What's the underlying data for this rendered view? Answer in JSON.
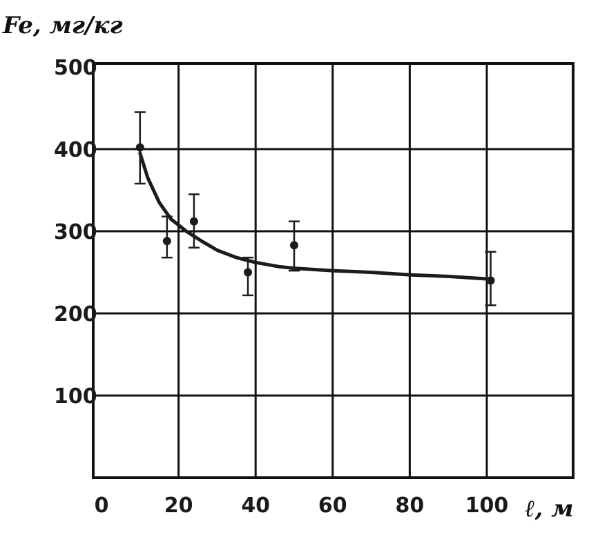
{
  "chart_data": {
    "type": "scatter",
    "title": "",
    "ylabel": "Fe, мг/кг",
    "xlabel": "ℓ, м",
    "x_ticks": [
      "0",
      "20",
      "40",
      "60",
      "80",
      "100"
    ],
    "y_ticks": [
      "100",
      "200",
      "300",
      "400",
      "500"
    ],
    "xlim": [
      0,
      120
    ],
    "ylim": [
      0,
      500
    ],
    "grid": true,
    "series": [
      {
        "points": [
          {
            "x": 10,
            "y": 402,
            "err_low": 358,
            "err_high": 445
          },
          {
            "x": 17,
            "y": 288,
            "err_low": 268,
            "err_high": 318
          },
          {
            "x": 24,
            "y": 312,
            "err_low": 280,
            "err_high": 345
          },
          {
            "x": 38,
            "y": 250,
            "err_low": 222,
            "err_high": 268
          },
          {
            "x": 50,
            "y": 283,
            "err_low": 252,
            "err_high": 312
          },
          {
            "x": 101,
            "y": 240,
            "err_low": 210,
            "err_high": 275
          }
        ]
      }
    ],
    "fit_curve": [
      [
        10,
        395
      ],
      [
        12,
        365
      ],
      [
        15,
        335
      ],
      [
        18,
        315
      ],
      [
        22,
        300
      ],
      [
        26,
        288
      ],
      [
        30,
        277
      ],
      [
        35,
        268
      ],
      [
        40,
        262
      ],
      [
        46,
        257
      ],
      [
        50,
        255
      ],
      [
        60,
        252
      ],
      [
        70,
        250
      ],
      [
        80,
        247
      ],
      [
        90,
        245
      ],
      [
        100,
        242
      ]
    ],
    "colors": {
      "ink": "#1c1c1c",
      "background": "#ffffff"
    }
  }
}
